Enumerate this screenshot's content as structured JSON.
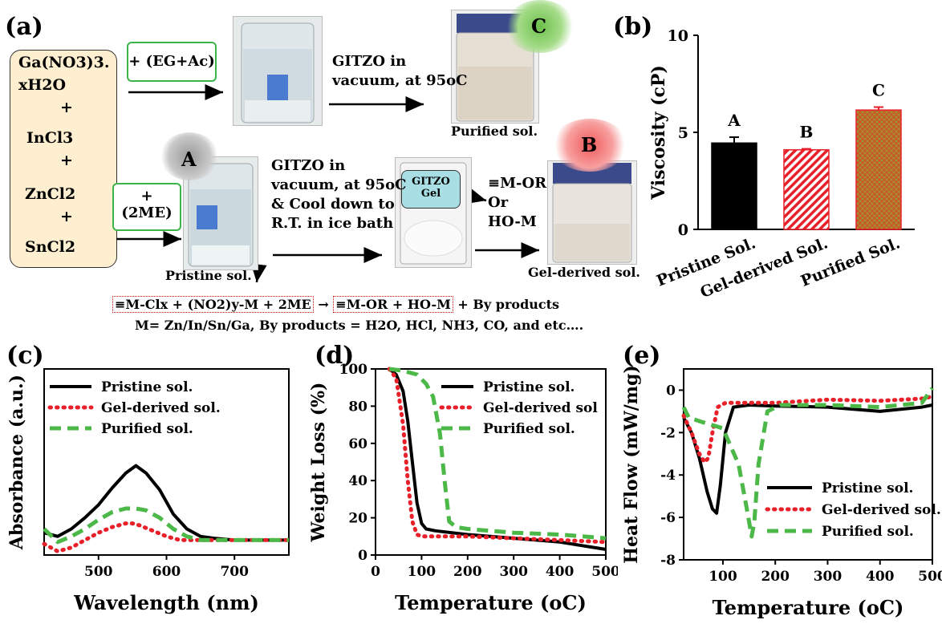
{
  "panel_a": {
    "label": "(a)",
    "reagents": [
      "Ga(NO3)3.",
      "xH2O",
      "+",
      "InCl3",
      "+",
      "ZnCl2",
      "+",
      "SnCl2"
    ],
    "additive_top": "+ (EG+Ac)",
    "additive_bottom_1": "+",
    "additive_bottom_2": "(2ME)",
    "step_top_1": "GITZO in",
    "step_top_2": "vacuum, at 95oC",
    "step_bottom": [
      "GITZO in",
      "vacuum, at 95oC",
      "& Cool down to",
      "R.T. in ice bath"
    ],
    "gel_label_1": "GITZO",
    "gel_label_2": "Gel",
    "gel_products": [
      "≡M-OR",
      "Or",
      "HO-M"
    ],
    "marker_a": "A",
    "marker_b": "B",
    "marker_c": "C",
    "caption_pristine": "Pristine sol.",
    "caption_purified": "Purified sol.",
    "caption_gel": "Gel-derived sol.",
    "equation_left": "≡M-Clx + (NO2)y-M + 2ME",
    "equation_arrow": "→",
    "equation_right": "≡M-OR   +   HO-M",
    "equation_tail": "+  By products",
    "equation_note": "M= Zn/In/Sn/Ga, By products = H2O, HCl, NH3, CO, and etc…."
  },
  "chart_data": [
    {
      "panel": "(b)",
      "type": "bar",
      "ylabel": "Viscosity (cP)",
      "ylim": [
        0,
        10
      ],
      "yticks": [
        0,
        5,
        10
      ],
      "categories": [
        "Pristine Sol.",
        "Gel-derived Sol.",
        "Purified Sol."
      ],
      "values": [
        4.45,
        4.1,
        6.15
      ],
      "errors": [
        0.3,
        0.05,
        0.15
      ],
      "bar_labels": [
        "A",
        "B",
        "C"
      ],
      "colors": [
        "#000000",
        "#e8202a",
        "#9a7a1a"
      ]
    },
    {
      "panel": "(c)",
      "type": "line",
      "xlabel": "Wavelength (nm)",
      "ylabel": "Absorbance (a.u.)",
      "xlim": [
        420,
        780
      ],
      "xticks": [
        500,
        600,
        700
      ],
      "ylim": [
        0,
        1
      ],
      "series": [
        {
          "name": "Pristine sol.",
          "color": "#000000",
          "style": "solid",
          "x": [
            420,
            440,
            460,
            480,
            500,
            520,
            540,
            555,
            570,
            590,
            610,
            630,
            650,
            670,
            700,
            740,
            780
          ],
          "y": [
            0.12,
            0.1,
            0.14,
            0.2,
            0.27,
            0.36,
            0.44,
            0.48,
            0.44,
            0.35,
            0.22,
            0.14,
            0.1,
            0.09,
            0.08,
            0.08,
            0.08
          ]
        },
        {
          "name": "Gel-derived sol.",
          "color": "#e8202a",
          "style": "dotted",
          "x": [
            420,
            440,
            460,
            480,
            500,
            520,
            540,
            550,
            560,
            580,
            600,
            620,
            640,
            660,
            700,
            740,
            780
          ],
          "y": [
            0.06,
            0.02,
            0.04,
            0.08,
            0.12,
            0.15,
            0.17,
            0.17,
            0.16,
            0.13,
            0.1,
            0.08,
            0.08,
            0.08,
            0.08,
            0.08,
            0.08
          ]
        },
        {
          "name": "Purified sol.",
          "color": "#4cb848",
          "style": "dashed",
          "x": [
            420,
            440,
            460,
            480,
            500,
            520,
            540,
            555,
            570,
            590,
            610,
            630,
            650,
            670,
            700,
            740,
            780
          ],
          "y": [
            0.14,
            0.07,
            0.1,
            0.14,
            0.19,
            0.23,
            0.25,
            0.25,
            0.24,
            0.2,
            0.14,
            0.1,
            0.08,
            0.08,
            0.08,
            0.08,
            0.08
          ]
        }
      ]
    },
    {
      "panel": "(d)",
      "type": "line",
      "xlabel": "Temperature (oC)",
      "ylabel": "Weight Loss (%)",
      "xlim": [
        0,
        500
      ],
      "xticks": [
        0,
        100,
        200,
        300,
        400,
        500
      ],
      "ylim": [
        0,
        100
      ],
      "yticks": [
        0,
        20,
        40,
        60,
        80,
        100
      ],
      "series": [
        {
          "name": "Pristine sol.",
          "color": "#000000",
          "style": "solid",
          "x": [
            30,
            45,
            60,
            70,
            80,
            90,
            100,
            110,
            130,
            200,
            300,
            400,
            500
          ],
          "y": [
            100,
            97,
            88,
            72,
            50,
            28,
            17,
            14,
            13,
            11,
            9,
            7,
            3
          ]
        },
        {
          "name": "Gel-derived sol",
          "color": "#e8202a",
          "style": "dotted",
          "x": [
            30,
            45,
            60,
            70,
            80,
            90,
            100,
            120,
            200,
            300,
            400,
            500
          ],
          "y": [
            100,
            95,
            70,
            40,
            18,
            11,
            10,
            10,
            10,
            9,
            8,
            7
          ]
        },
        {
          "name": "Purified sol.",
          "color": "#4cb848",
          "style": "dashed",
          "x": [
            30,
            60,
            90,
            110,
            125,
            140,
            150,
            160,
            175,
            200,
            300,
            400,
            500
          ],
          "y": [
            100,
            99,
            97,
            92,
            85,
            65,
            40,
            18,
            15,
            14,
            12,
            11,
            9
          ]
        }
      ]
    },
    {
      "panel": "(e)",
      "type": "line",
      "xlabel": "Temperature (oC)",
      "ylabel": "Heat Flow (mW/mg)",
      "xlim": [
        25,
        500
      ],
      "xticks": [
        100,
        200,
        300,
        400,
        500
      ],
      "ylim": [
        -8,
        1
      ],
      "yticks": [
        0,
        -2,
        -4,
        -6,
        -8
      ],
      "series": [
        {
          "name": "Pristine sol.",
          "color": "#000000",
          "style": "solid",
          "x": [
            25,
            40,
            55,
            70,
            80,
            88,
            95,
            105,
            120,
            150,
            200,
            300,
            400,
            480,
            500
          ],
          "y": [
            -1.3,
            -2.0,
            -3.2,
            -4.8,
            -5.6,
            -5.8,
            -4.5,
            -2.0,
            -0.8,
            -0.7,
            -0.75,
            -0.8,
            -1.0,
            -0.8,
            -0.7
          ]
        },
        {
          "name": "Gel-derived sol.",
          "color": "#e8202a",
          "style": "dotted",
          "x": [
            25,
            40,
            55,
            65,
            72,
            80,
            90,
            105,
            130,
            200,
            300,
            400,
            480,
            500
          ],
          "y": [
            -1.2,
            -2.0,
            -3.0,
            -3.4,
            -3.2,
            -2.0,
            -0.8,
            -0.6,
            -0.6,
            -0.6,
            -0.45,
            -0.5,
            -0.4,
            -0.3
          ]
        },
        {
          "name": "Purified sol.",
          "color": "#4cb848",
          "style": "dashed",
          "x": [
            25,
            35,
            60,
            100,
            130,
            145,
            155,
            160,
            168,
            185,
            210,
            300,
            400,
            480,
            500
          ],
          "y": [
            -0.8,
            -1.3,
            -1.5,
            -1.8,
            -3.5,
            -5.5,
            -6.9,
            -6.2,
            -3.5,
            -1.0,
            -0.7,
            -0.7,
            -0.8,
            -0.6,
            0.1
          ]
        }
      ]
    }
  ]
}
